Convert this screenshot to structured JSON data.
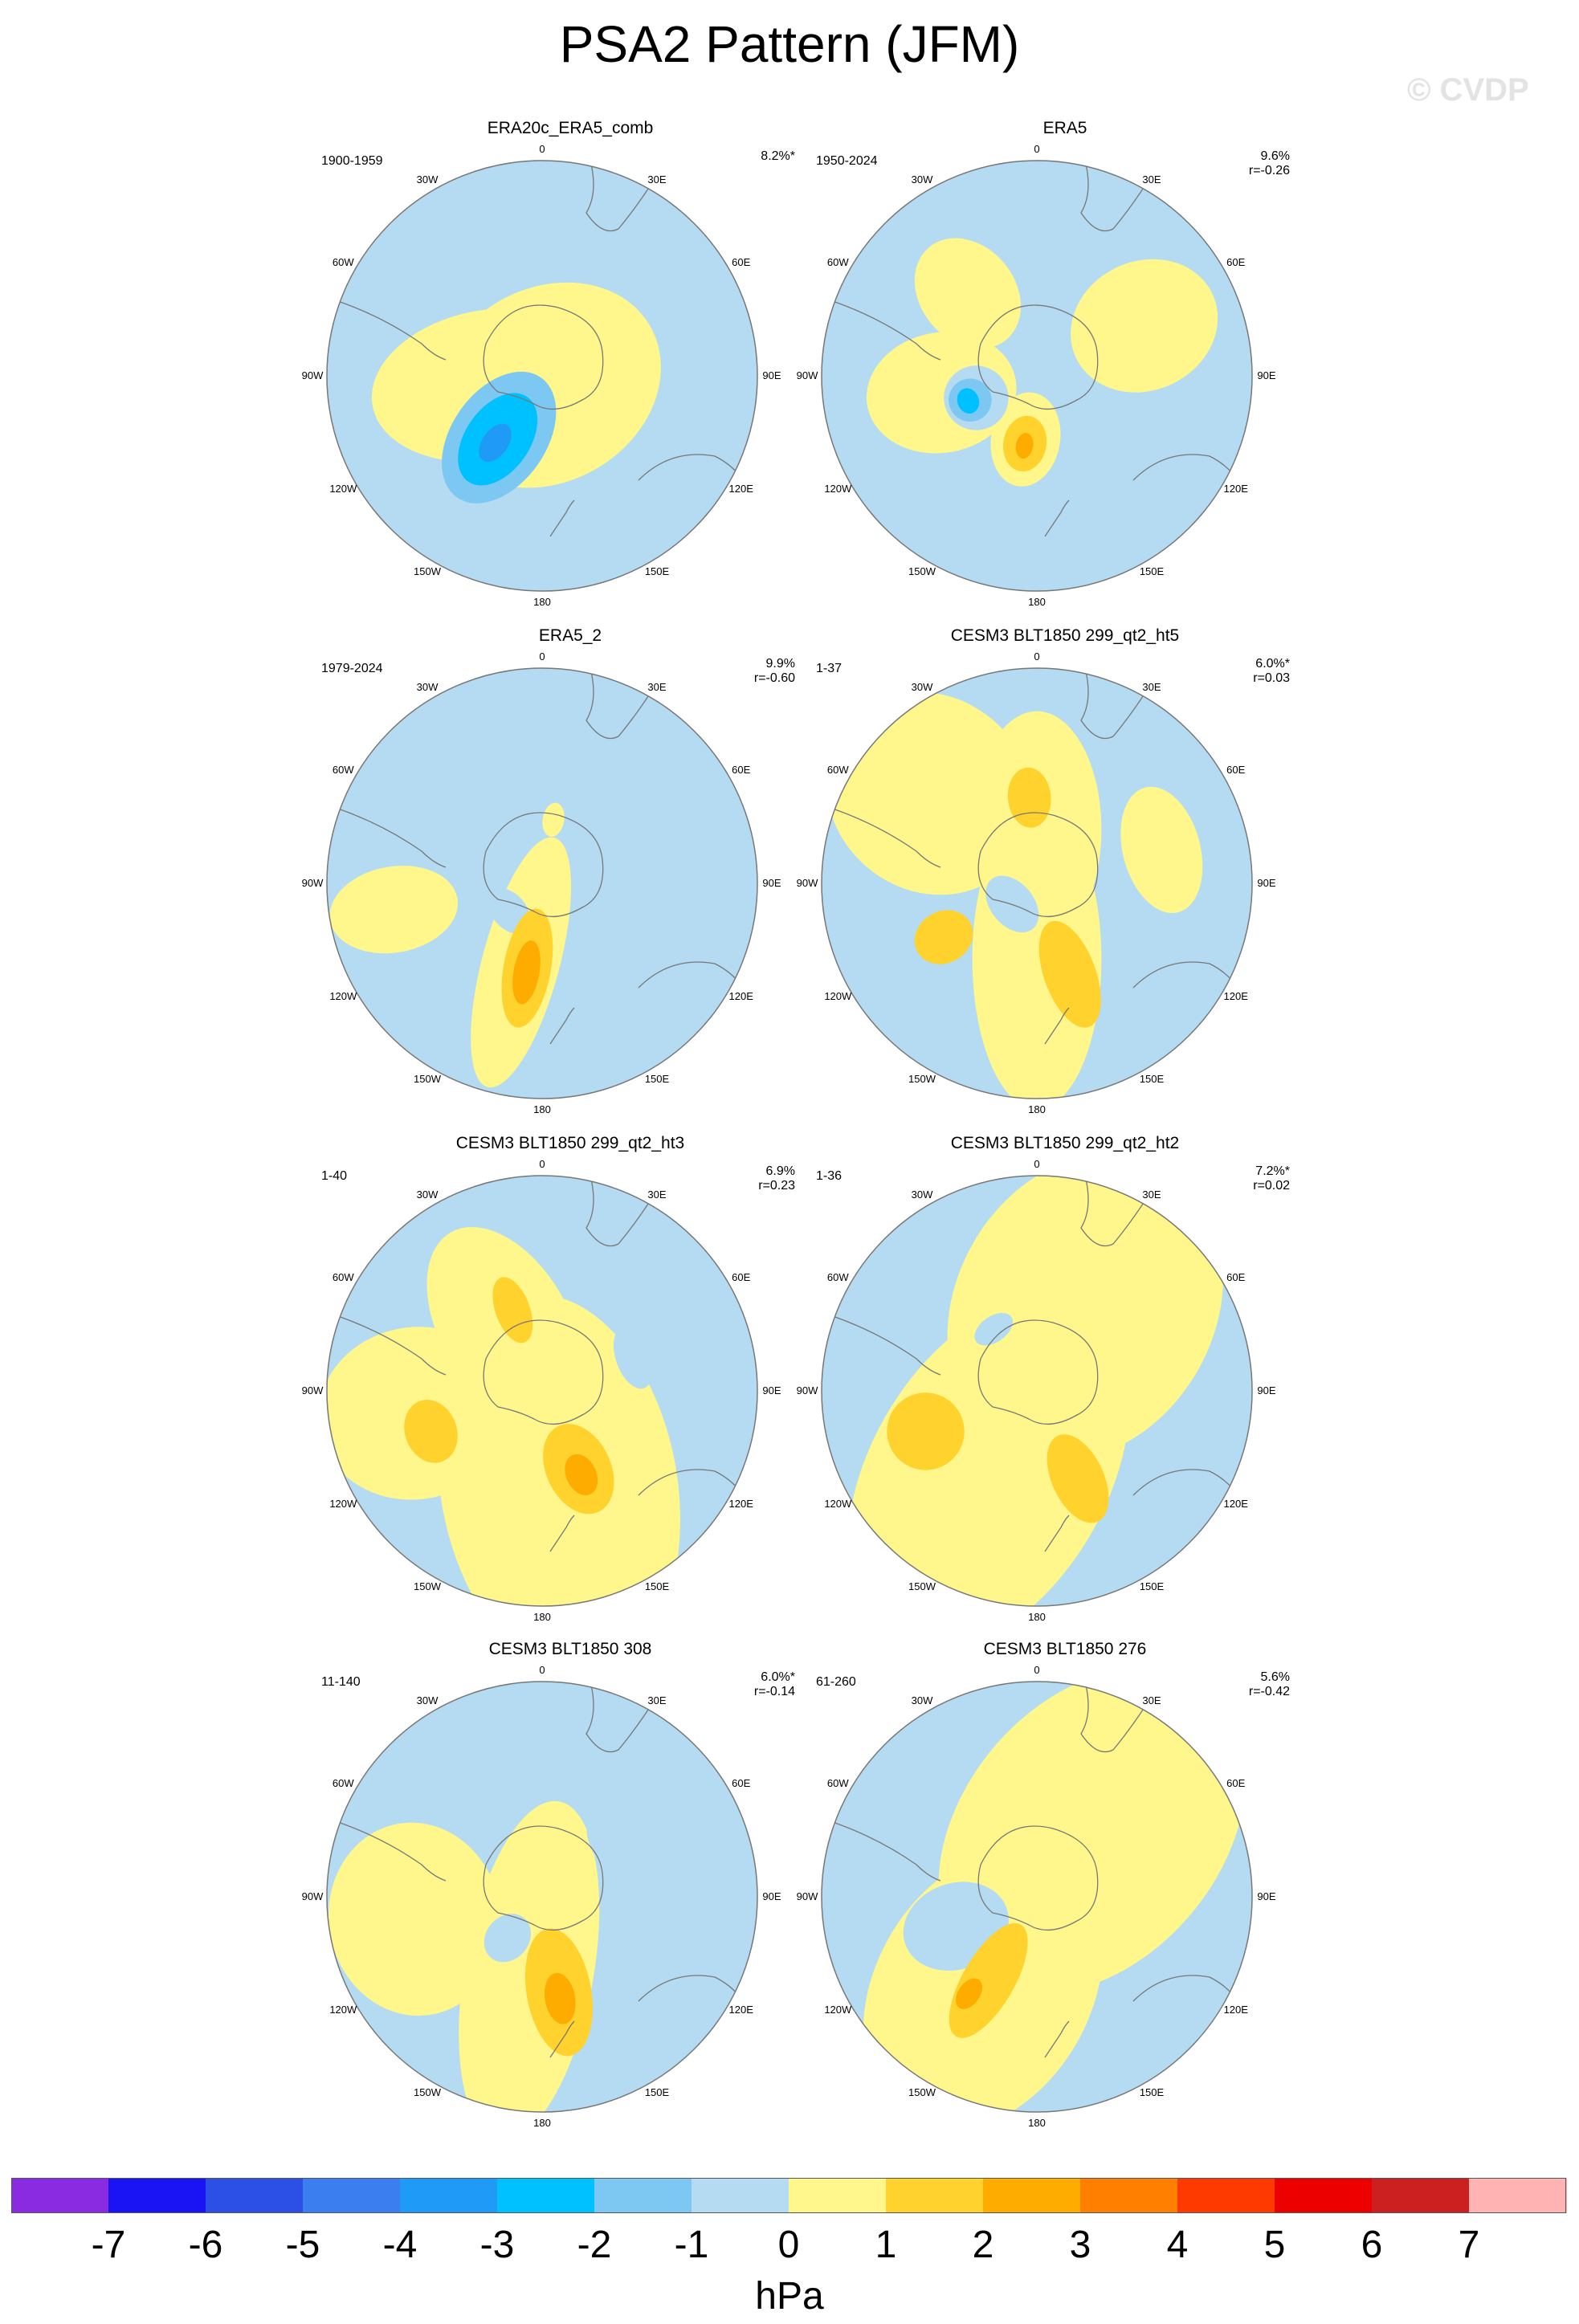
{
  "title": "PSA2 Pattern (JFM)",
  "watermark": "© CVDP",
  "chart_data": {
    "type": "heatmap",
    "projection": "south polar stereographic",
    "lon_labels": [
      "0",
      "30E",
      "60E",
      "90E",
      "120E",
      "150E",
      "180",
      "150W",
      "120W",
      "90W",
      "60W",
      "30W"
    ],
    "colorbar": {
      "unit": "hPa",
      "ticks": [
        "-7",
        "-6",
        "-5",
        "-4",
        "-3",
        "-2",
        "-1",
        "0",
        "1",
        "2",
        "3",
        "4",
        "5",
        "6",
        "7"
      ],
      "colors": [
        "#8a2be2",
        "#1a14f5",
        "#2c4fe6",
        "#3a7ef0",
        "#1f9bf7",
        "#00c1ff",
        "#7cc8f2",
        "#b4dbf1",
        "#fff78c",
        "#ffd22e",
        "#ffac00",
        "#ff7f00",
        "#ff3a00",
        "#ec0000",
        "#cc1f1f",
        "#ffb3b3"
      ]
    },
    "panels": [
      {
        "title": "ERA20c_ERA5_comb",
        "period": "1900-1959",
        "pct": "8.2%*",
        "r": "",
        "features": [
          {
            "lon": -210,
            "r": 0.05,
            "rx": 0.45,
            "ry": 0.55,
            "level": 1
          },
          {
            "lon": -100,
            "r": 0.25,
            "rx": 0.55,
            "ry": 0.35,
            "level": 1
          },
          {
            "lon": -145,
            "r": 0.35,
            "rx": 0.34,
            "ry": 0.22,
            "level": -2
          },
          {
            "lon": -145,
            "r": 0.36,
            "rx": 0.24,
            "ry": 0.15,
            "level": -3
          },
          {
            "lon": -145,
            "r": 0.38,
            "rx": 0.1,
            "ry": 0.06,
            "level": -4
          }
        ]
      },
      {
        "title": "ERA5",
        "period": "1950-2024",
        "pct": "9.6%",
        "r": "r=-0.26",
        "features": [
          {
            "lon": -40,
            "r": 0.5,
            "rx": 0.28,
            "ry": 0.22,
            "level": 1
          },
          {
            "lon": 65,
            "r": 0.55,
            "rx": 0.35,
            "ry": 0.3,
            "level": 1
          },
          {
            "lon": -100,
            "r": 0.45,
            "rx": 0.35,
            "ry": 0.28,
            "level": 1
          },
          {
            "lon": -170,
            "r": 0.3,
            "rx": 0.22,
            "ry": 0.16,
            "level": 1
          },
          {
            "lon": -170,
            "r": 0.32,
            "rx": 0.13,
            "ry": 0.1,
            "level": 2
          },
          {
            "lon": -170,
            "r": 0.33,
            "rx": 0.06,
            "ry": 0.04,
            "level": 3
          },
          {
            "lon": -110,
            "r": 0.3,
            "rx": 0.15,
            "ry": 0.15,
            "level": -1
          },
          {
            "lon": -110,
            "r": 0.33,
            "rx": 0.1,
            "ry": 0.1,
            "level": -2
          },
          {
            "lon": -110,
            "r": 0.34,
            "rx": 0.05,
            "ry": 0.06,
            "level": -3
          }
        ]
      },
      {
        "title": "ERA5_2",
        "period": "1979-2024",
        "pct": "9.9%",
        "r": "r=-0.60",
        "features": [
          {
            "lon": -100,
            "r": 0.7,
            "rx": 0.3,
            "ry": 0.2,
            "level": 1
          },
          {
            "lon": -165,
            "r": 0.38,
            "rx": 0.6,
            "ry": 0.18,
            "level": 1
          },
          {
            "lon": -170,
            "r": 0.4,
            "rx": 0.28,
            "ry": 0.11,
            "level": 2
          },
          {
            "lon": -170,
            "r": 0.42,
            "rx": 0.15,
            "ry": 0.06,
            "level": 3
          },
          {
            "lon": 10,
            "r": 0.3,
            "rx": 0.08,
            "ry": 0.05,
            "level": 1
          },
          {
            "lon": -130,
            "r": 0.2,
            "rx": 0.08,
            "ry": 0.12,
            "level": -1
          }
        ]
      },
      {
        "title": "CESM3 BLT1850 299_qt2_ht5",
        "period": "1-37",
        "pct": "6.0%*",
        "r": "r=0.03",
        "features": [
          {
            "lon": -50,
            "r": 0.65,
            "rx": 0.5,
            "ry": 0.45,
            "level": 1
          },
          {
            "lon": 0,
            "r": 0.25,
            "rx": 0.55,
            "ry": 0.3,
            "level": 1
          },
          {
            "lon": 180,
            "r": 0.35,
            "rx": 0.7,
            "ry": 0.3,
            "level": 1
          },
          {
            "lon": 75,
            "r": 0.6,
            "rx": 0.18,
            "ry": 0.3,
            "level": 1
          },
          {
            "lon": -5,
            "r": 0.4,
            "rx": 0.14,
            "ry": 0.1,
            "level": 2
          },
          {
            "lon": -120,
            "r": 0.5,
            "rx": 0.14,
            "ry": 0.12,
            "level": 2
          },
          {
            "lon": 160,
            "r": 0.45,
            "rx": 0.26,
            "ry": 0.12,
            "level": 2
          },
          {
            "lon": -130,
            "r": 0.15,
            "rx": 0.1,
            "ry": 0.15,
            "level": -1
          }
        ]
      },
      {
        "title": "CESM3 BLT1850 299_qt2_ht3",
        "period": "1-40",
        "pct": "6.9%",
        "r": "r=0.23",
        "features": [
          {
            "lon": -30,
            "r": 0.35,
            "rx": 0.5,
            "ry": 0.3,
            "level": 1
          },
          {
            "lon": -100,
            "r": 0.6,
            "rx": 0.45,
            "ry": 0.4,
            "level": 1
          },
          {
            "lon": 170,
            "r": 0.45,
            "rx": 0.9,
            "ry": 0.55,
            "level": 1
          },
          {
            "lon": -20,
            "r": 0.4,
            "rx": 0.16,
            "ry": 0.08,
            "level": 2
          },
          {
            "lon": -110,
            "r": 0.55,
            "rx": 0.12,
            "ry": 0.15,
            "level": 2
          },
          {
            "lon": 155,
            "r": 0.4,
            "rx": 0.22,
            "ry": 0.15,
            "level": 2
          },
          {
            "lon": 155,
            "r": 0.43,
            "rx": 0.1,
            "ry": 0.07,
            "level": 3
          },
          {
            "lon": 70,
            "r": 0.45,
            "rx": 0.08,
            "ry": 0.15,
            "level": -1
          }
        ]
      },
      {
        "title": "CESM3 BLT1850 299_qt2_ht2",
        "period": "1-36",
        "pct": "7.2%*",
        "r": "r=0.02",
        "features": [
          {
            "lon": 30,
            "r": 0.45,
            "rx": 0.75,
            "ry": 0.6,
            "level": 1
          },
          {
            "lon": -150,
            "r": 0.45,
            "rx": 0.9,
            "ry": 0.55,
            "level": 1
          },
          {
            "lon": -110,
            "r": 0.55,
            "rx": 0.18,
            "ry": 0.18,
            "level": 2
          },
          {
            "lon": 155,
            "r": 0.45,
            "rx": 0.22,
            "ry": 0.12,
            "level": 2
          },
          {
            "lon": -35,
            "r": 0.35,
            "rx": 0.06,
            "ry": 0.1,
            "level": -1
          }
        ]
      },
      {
        "title": "CESM3 BLT1850 308",
        "period": "11-140",
        "pct": "6.0%*",
        "r": "r=-0.14",
        "features": [
          {
            "lon": -100,
            "r": 0.6,
            "rx": 0.4,
            "ry": 0.45,
            "level": 1
          },
          {
            "lon": -170,
            "r": 0.35,
            "rx": 0.8,
            "ry": 0.3,
            "level": 1
          },
          {
            "lon": 170,
            "r": 0.45,
            "rx": 0.3,
            "ry": 0.15,
            "level": 2
          },
          {
            "lon": 170,
            "r": 0.48,
            "rx": 0.12,
            "ry": 0.07,
            "level": 3
          },
          {
            "lon": 55,
            "r": 0.45,
            "rx": 0.14,
            "ry": 0.2,
            "level": -1
          },
          {
            "lon": -140,
            "r": 0.25,
            "rx": 0.12,
            "ry": 0.1,
            "level": -1
          }
        ]
      },
      {
        "title": "CESM3 BLT1850 276",
        "period": "61-260",
        "pct": "5.6%",
        "r": "r=-0.42",
        "features": [
          {
            "lon": 40,
            "r": 0.4,
            "rx": 0.85,
            "ry": 0.6,
            "level": 1
          },
          {
            "lon": -150,
            "r": 0.5,
            "rx": 0.7,
            "ry": 0.5,
            "level": 1
          },
          {
            "lon": -150,
            "r": 0.45,
            "rx": 0.3,
            "ry": 0.12,
            "level": 2
          },
          {
            "lon": -145,
            "r": 0.55,
            "rx": 0.08,
            "ry": 0.05,
            "level": 3
          },
          {
            "lon": -110,
            "r": 0.4,
            "rx": 0.25,
            "ry": 0.2,
            "level": -1
          }
        ]
      }
    ]
  }
}
